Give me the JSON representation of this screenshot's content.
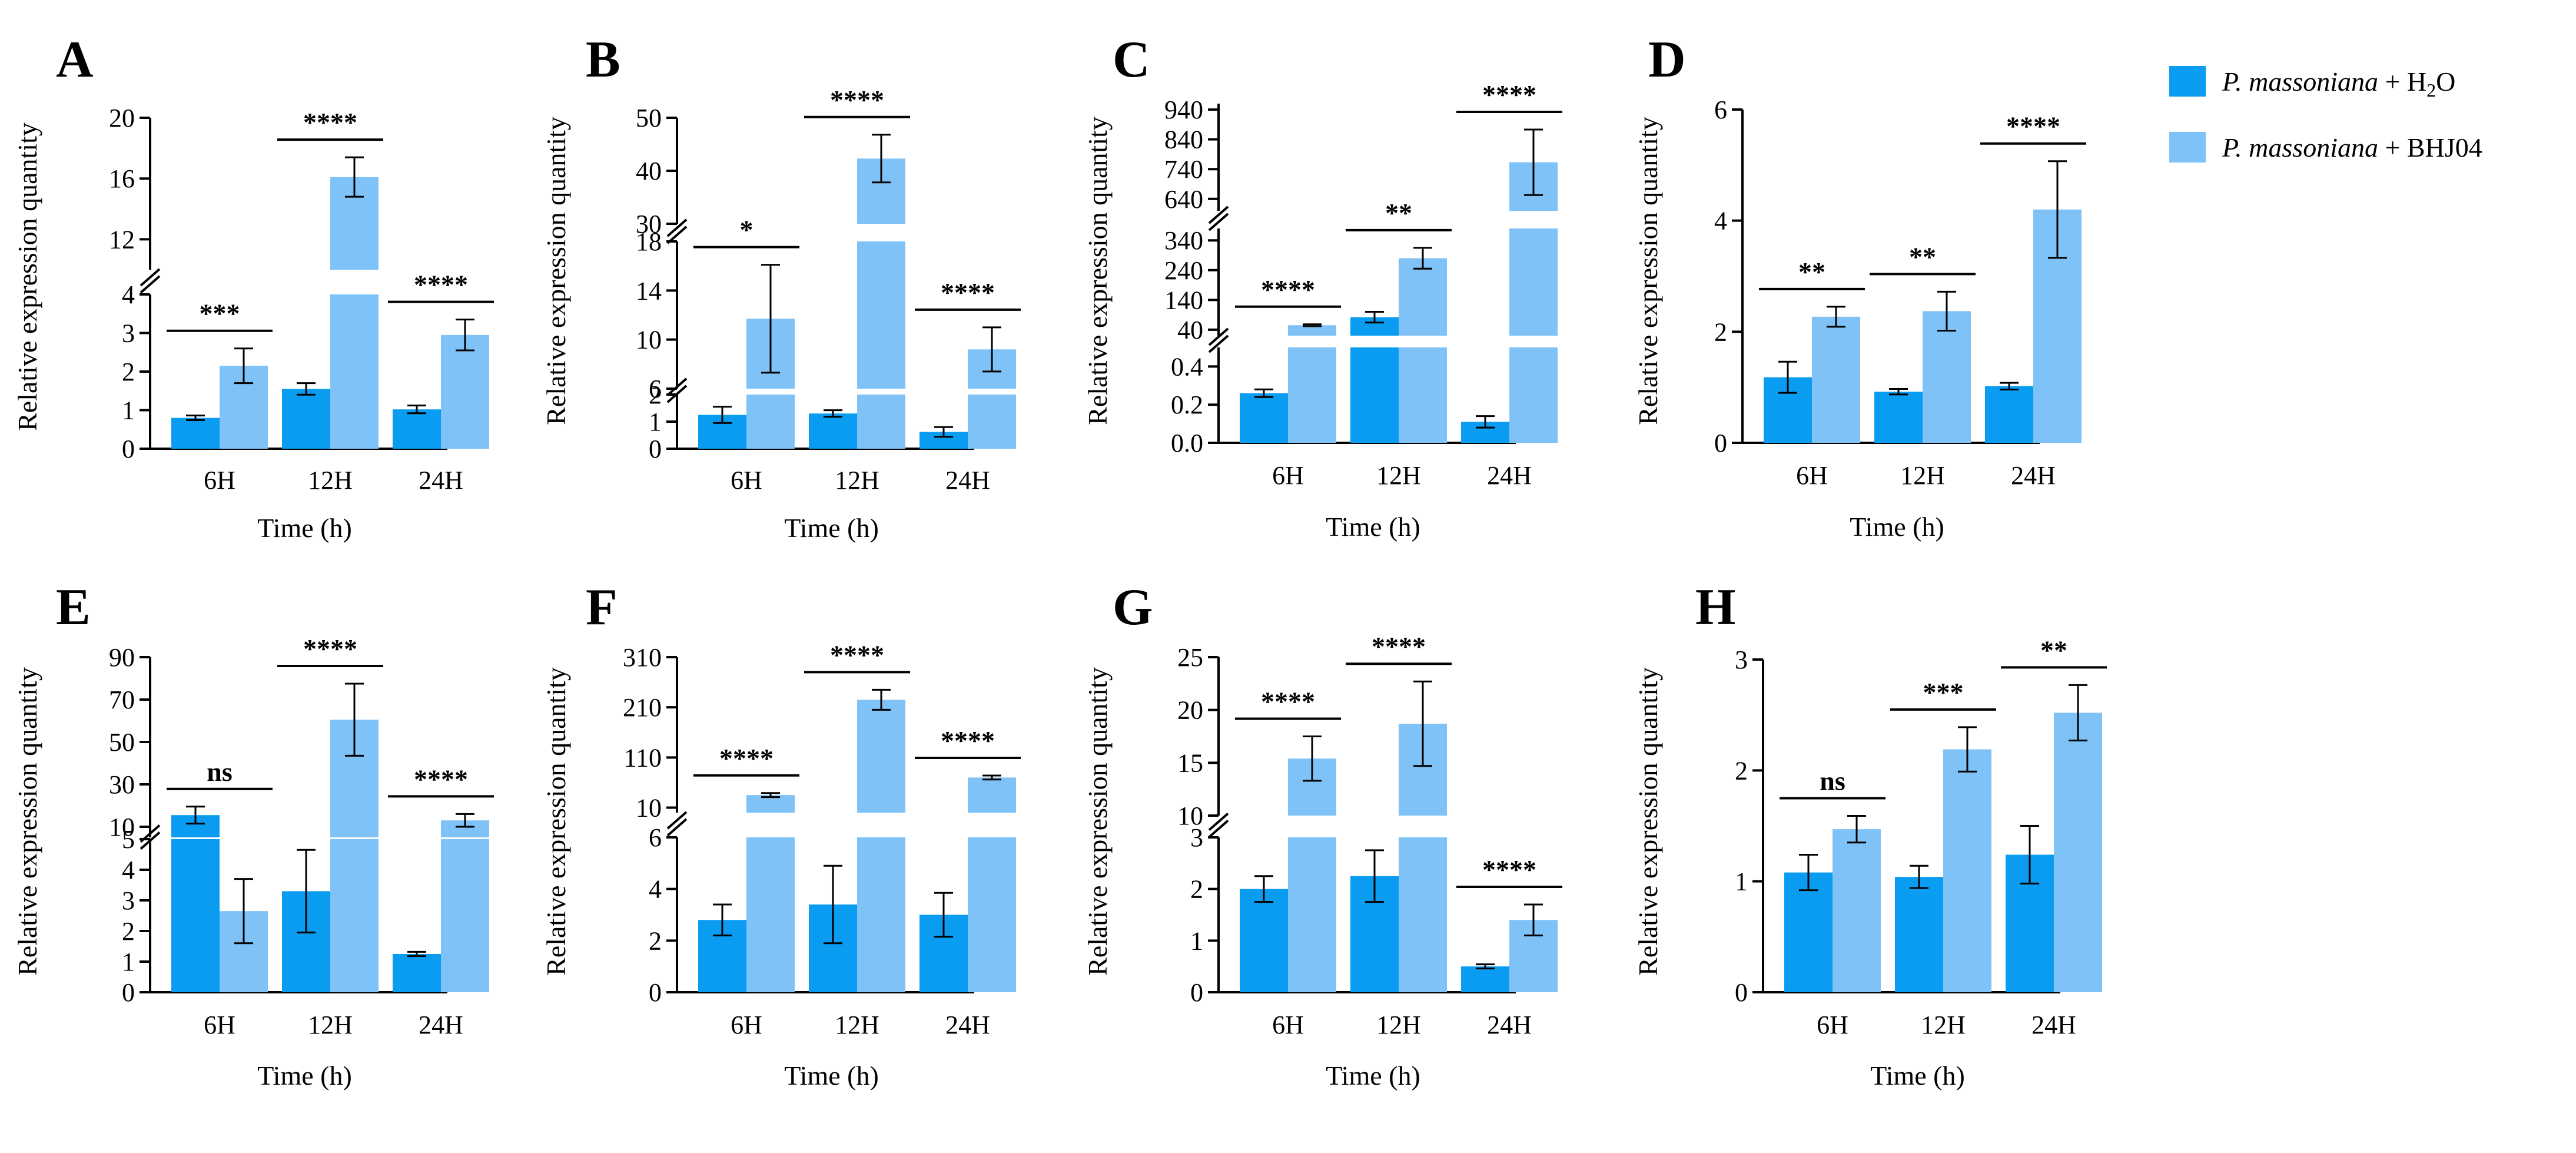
{
  "legend": {
    "position": "top-right",
    "items": [
      {
        "italic": "P. massoniana",
        "plain": " + H",
        "sub": "2",
        "tail": "O",
        "color": "#0a9cf0"
      },
      {
        "italic": "P. massoniana",
        "plain": " + BHJ04",
        "sub": "",
        "tail": "",
        "color": "#7ec2f7"
      }
    ]
  },
  "chart_data": [
    {
      "type": "bar",
      "panel": "A",
      "categories": [
        "6H",
        "12H",
        "24H"
      ],
      "xlabel": "Time (h)",
      "ylabel": "Relative expression quantity",
      "broken_axis": true,
      "segments": [
        {
          "range": [
            0,
            4
          ],
          "ticks": [
            0,
            1,
            2,
            3,
            4
          ],
          "tick_labels": [
            "0",
            "1",
            "2",
            "3",
            "4"
          ]
        },
        {
          "range": [
            10,
            20
          ],
          "ticks": [
            12,
            16,
            20
          ],
          "tick_labels": [
            "12",
            "16",
            "20"
          ]
        }
      ],
      "series": [
        {
          "values": [
            0.8,
            1.55,
            1.02
          ],
          "errors": [
            0.06,
            0.15,
            0.1
          ]
        },
        {
          "values": [
            2.15,
            16.1,
            2.95
          ],
          "errors": [
            0.45,
            1.3,
            0.4
          ]
        }
      ],
      "significance": [
        "***",
        "****",
        "****"
      ]
    },
    {
      "type": "bar",
      "panel": "B",
      "categories": [
        "6H",
        "12H",
        "24H"
      ],
      "xlabel": "Time (h)",
      "ylabel": "Relative expression quantity",
      "broken_axis": true,
      "segments": [
        {
          "range": [
            0,
            2
          ],
          "ticks": [
            0,
            1,
            2
          ],
          "tick_labels": [
            "0",
            "1",
            "2"
          ]
        },
        {
          "range": [
            6,
            18
          ],
          "ticks": [
            6,
            10,
            14,
            18
          ],
          "tick_labels": [
            "6",
            "10",
            "14",
            "18"
          ]
        },
        {
          "range": [
            30,
            50
          ],
          "ticks": [
            30,
            40,
            50
          ],
          "tick_labels": [
            "30",
            "40",
            "50"
          ]
        }
      ],
      "series": [
        {
          "values": [
            1.25,
            1.3,
            0.62
          ],
          "errors": [
            0.3,
            0.12,
            0.18
          ]
        },
        {
          "values": [
            11.7,
            42.3,
            9.2
          ],
          "errors": [
            4.4,
            4.5,
            1.8
          ]
        }
      ],
      "significance": [
        "*",
        "****",
        "****"
      ]
    },
    {
      "type": "bar",
      "panel": "C",
      "categories": [
        "6H",
        "12H",
        "24H"
      ],
      "xlabel": "Time (h)",
      "ylabel": "Relative expression quantity",
      "broken_axis": true,
      "segments": [
        {
          "range": [
            0,
            0.5
          ],
          "ticks": [
            0,
            0.2,
            0.4
          ],
          "tick_labels": [
            "0.0",
            "0.2",
            "0.4"
          ]
        },
        {
          "range": [
            20,
            380
          ],
          "ticks": [
            40,
            140,
            240,
            340
          ],
          "tick_labels": [
            "40",
            "140",
            "240",
            "340"
          ]
        },
        {
          "range": [
            600,
            960
          ],
          "ticks": [
            640,
            740,
            840,
            940
          ],
          "tick_labels": [
            "640",
            "740",
            "840",
            "940"
          ]
        }
      ],
      "series": [
        {
          "values": [
            0.26,
            82,
            0.11
          ],
          "errors": [
            0.02,
            18,
            0.03
          ]
        },
        {
          "values": [
            55,
            280,
            763
          ],
          "errors": [
            3,
            35,
            110
          ]
        }
      ],
      "significance": [
        "****",
        "**",
        "****"
      ]
    },
    {
      "type": "bar",
      "panel": "D",
      "categories": [
        "6H",
        "12H",
        "24H"
      ],
      "xlabel": "Time (h)",
      "ylabel": "Relative expression quantity",
      "broken_axis": false,
      "segments": [
        {
          "range": [
            0,
            6
          ],
          "ticks": [
            0,
            2,
            4,
            6
          ],
          "tick_labels": [
            "0",
            "2",
            "4",
            "6"
          ]
        }
      ],
      "series": [
        {
          "values": [
            1.18,
            0.92,
            1.02
          ],
          "errors": [
            0.28,
            0.05,
            0.06
          ]
        },
        {
          "values": [
            2.27,
            2.37,
            4.2
          ],
          "errors": [
            0.18,
            0.35,
            0.87
          ]
        }
      ],
      "significance": [
        "**",
        "**",
        "****"
      ]
    },
    {
      "type": "bar",
      "panel": "E",
      "categories": [
        "6H",
        "12H",
        "24H"
      ],
      "xlabel": "Time (h)",
      "ylabel": "Relative expression quantity",
      "broken_axis": true,
      "segments": [
        {
          "range": [
            0,
            5
          ],
          "ticks": [
            0,
            1,
            2,
            3,
            4,
            5
          ],
          "tick_labels": [
            "0",
            "1",
            "2",
            "3",
            "4",
            "5"
          ]
        },
        {
          "range": [
            5,
            90
          ],
          "ticks": [
            10,
            30,
            50,
            70,
            90
          ],
          "tick_labels": [
            "10",
            "30",
            "50",
            "70",
            "90"
          ]
        }
      ],
      "series": [
        {
          "values": [
            15.5,
            3.3,
            1.25
          ],
          "errors": [
            4,
            1.35,
            0.07
          ]
        },
        {
          "values": [
            2.65,
            60.5,
            13
          ],
          "errors": [
            1.05,
            17,
            3
          ]
        }
      ],
      "significance": [
        "ns",
        "****",
        "****"
      ]
    },
    {
      "type": "bar",
      "panel": "F",
      "categories": [
        "6H",
        "12H",
        "24H"
      ],
      "xlabel": "Time (h)",
      "ylabel": "Relative expression quantity",
      "broken_axis": true,
      "segments": [
        {
          "range": [
            0,
            6
          ],
          "ticks": [
            0,
            2,
            4,
            6
          ],
          "tick_labels": [
            "0",
            "2",
            "4",
            "6"
          ]
        },
        {
          "range": [
            0,
            310
          ],
          "ticks": [
            10,
            110,
            210,
            310
          ],
          "tick_labels": [
            "10",
            "110",
            "210",
            "310"
          ]
        }
      ],
      "series": [
        {
          "values": [
            2.8,
            3.4,
            3.0
          ],
          "errors": [
            0.6,
            1.5,
            0.85
          ]
        },
        {
          "values": [
            35,
            225,
            70
          ],
          "errors": [
            4,
            20,
            4
          ]
        }
      ],
      "significance": [
        "****",
        "****",
        "****"
      ]
    },
    {
      "type": "bar",
      "panel": "G",
      "categories": [
        "6H",
        "12H",
        "24H"
      ],
      "xlabel": "Time (h)",
      "ylabel": "Relative expression quantity",
      "broken_axis": true,
      "segments": [
        {
          "range": [
            0,
            3
          ],
          "ticks": [
            0,
            1,
            2,
            3
          ],
          "tick_labels": [
            "0",
            "1",
            "2",
            "3"
          ]
        },
        {
          "range": [
            10,
            25
          ],
          "ticks": [
            10,
            15,
            20,
            25
          ],
          "tick_labels": [
            "10",
            "15",
            "20",
            "25"
          ]
        }
      ],
      "series": [
        {
          "values": [
            2.0,
            2.25,
            0.5
          ],
          "errors": [
            0.25,
            0.5,
            0.04
          ]
        },
        {
          "values": [
            15.4,
            18.7,
            1.4
          ],
          "errors": [
            2.1,
            4.0,
            0.3
          ]
        }
      ],
      "significance": [
        "****",
        "****",
        "****"
      ]
    },
    {
      "type": "bar",
      "panel": "H",
      "categories": [
        "6H",
        "12H",
        "24H"
      ],
      "xlabel": "Time (h)",
      "ylabel": "Relative expression quantity",
      "broken_axis": false,
      "segments": [
        {
          "range": [
            0,
            3
          ],
          "ticks": [
            0,
            1,
            2,
            3
          ],
          "tick_labels": [
            "0",
            "1",
            "2",
            "3"
          ]
        }
      ],
      "series": [
        {
          "values": [
            1.08,
            1.04,
            1.24
          ],
          "errors": [
            0.16,
            0.1,
            0.26
          ]
        },
        {
          "values": [
            1.47,
            2.19,
            2.52
          ],
          "errors": [
            0.12,
            0.2,
            0.25
          ]
        }
      ],
      "significance": [
        "ns",
        "***",
        "**"
      ]
    }
  ]
}
